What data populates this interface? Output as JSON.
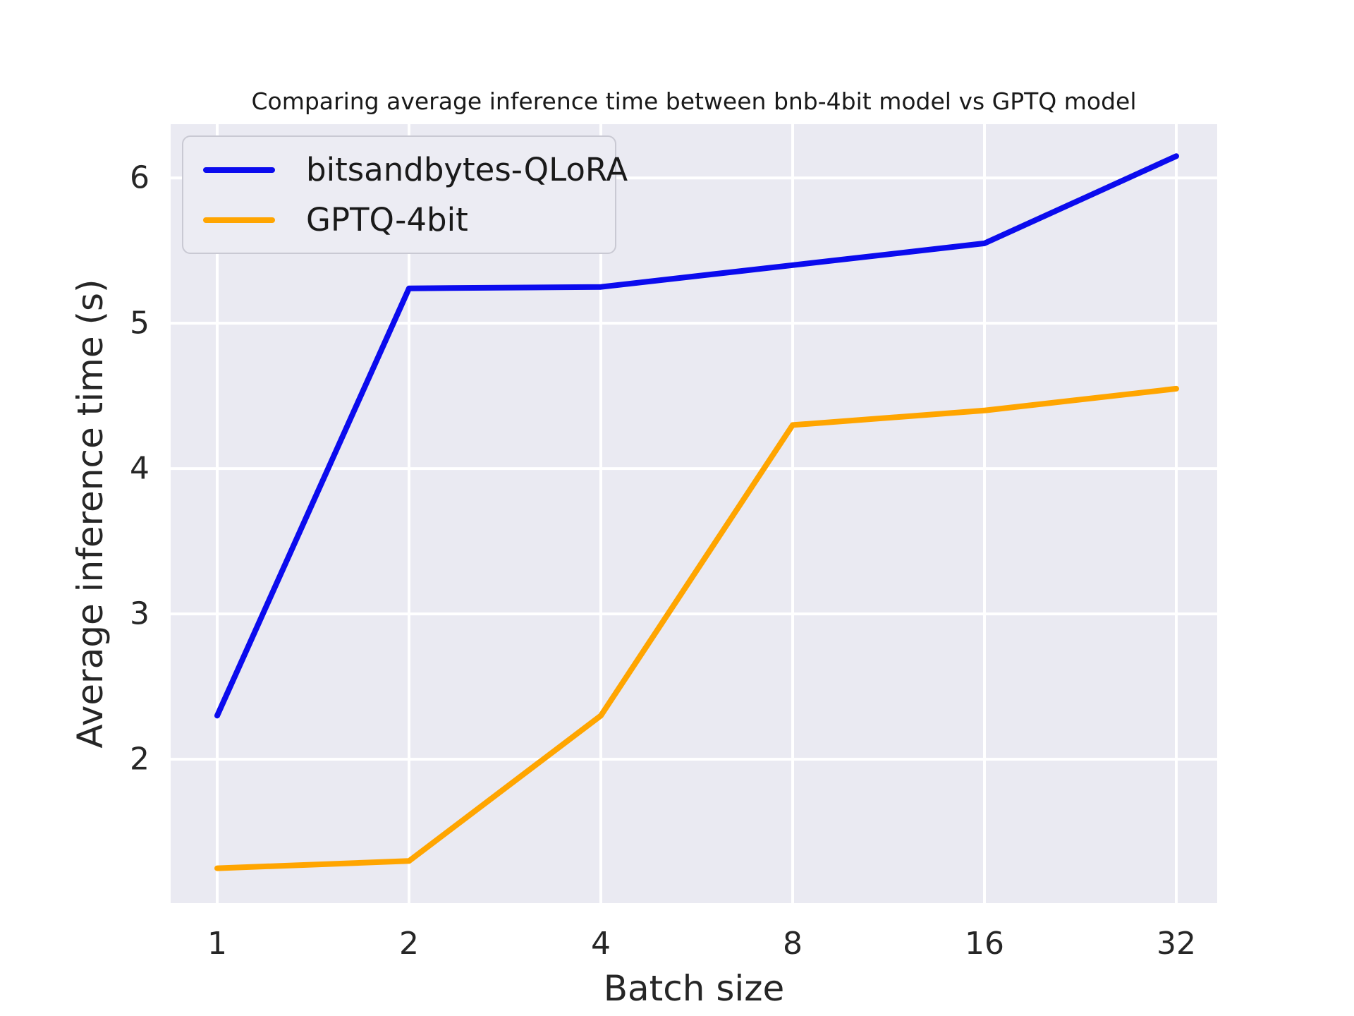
{
  "title": "Comparing average inference time between bnb-4bit model vs GPTQ model",
  "chart_data": {
    "type": "line",
    "categories": [
      "1",
      "2",
      "4",
      "8",
      "16",
      "32"
    ],
    "series": [
      {
        "name": "bitsandbytes-QLoRA",
        "color": "#0b0bee",
        "values": [
          2.3,
          5.24,
          5.25,
          5.4,
          5.55,
          6.15
        ]
      },
      {
        "name": "GPTQ-4bit",
        "color": "#ffa500",
        "values": [
          1.25,
          1.3,
          2.3,
          4.3,
          4.4,
          4.55
        ]
      }
    ],
    "xlabel": "Batch size",
    "ylabel": "Average inference time (s)",
    "yticks": [
      2,
      3,
      4,
      5,
      6
    ],
    "ylim": [
      1.01,
      6.37
    ],
    "grid": true,
    "legend_position": "upper left",
    "colors": {
      "plot_background": "#eaeaf2",
      "grid_line": "#ffffff",
      "figure_background": "#ffffff",
      "tick_text": "#262626",
      "title_text": "#1a1a1a"
    }
  }
}
